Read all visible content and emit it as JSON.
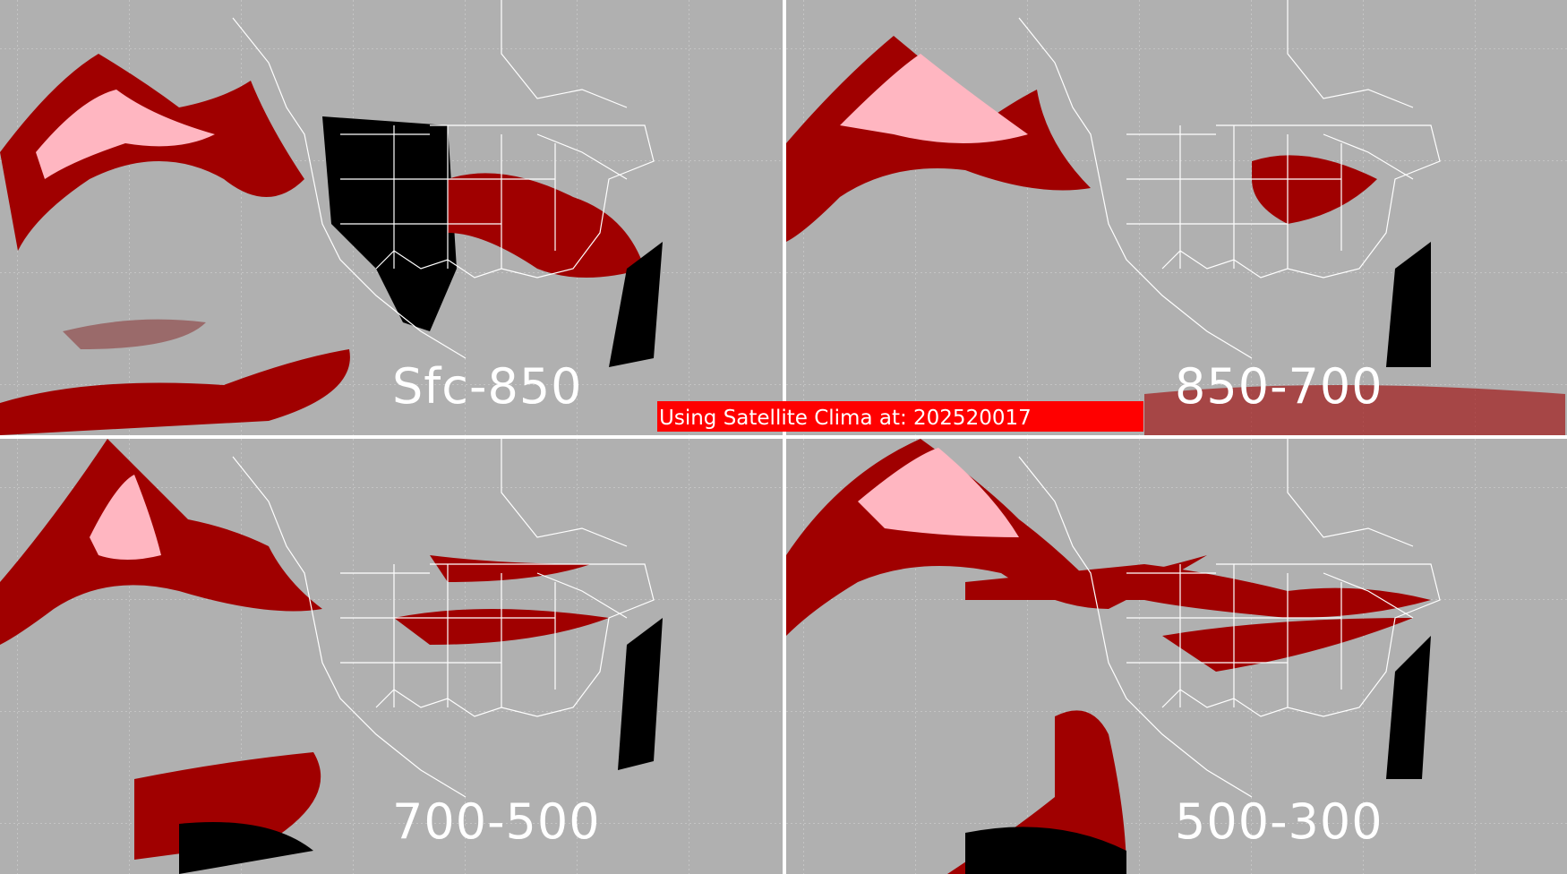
{
  "panels": [
    {
      "label": "Sfc-850"
    },
    {
      "label": "850-700"
    },
    {
      "label": "700-500"
    },
    {
      "label": "500-300"
    }
  ],
  "banner": {
    "text": "Using Satellite Clima at: 202520017"
  },
  "colors": {
    "background": "#b0b0b0",
    "cloud_dark": "#a00000",
    "cloud_light": "#ffb6c1",
    "cloud_mid": "#9a6a6a",
    "clear": "#000000",
    "banner": "#ff0000",
    "outline": "#ffffff"
  }
}
